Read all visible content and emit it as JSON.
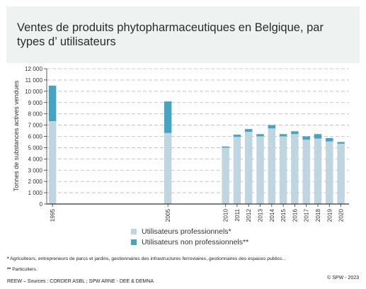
{
  "title": "Ventes de produits phytopharmaceutiques en Belgique, par types d’ utilisateurs",
  "legend": {
    "professional": "Utilisateurs professionnels*",
    "non_professional": "Utilisateurs non professionnels**"
  },
  "notes": {
    "note1_mark": "*",
    "note1_text": "Agriculteurs, entrepreneurs de parcs et jardins, gestionnaires des infrastructures ferroviaires, gestionnaires des espaces publics...",
    "note2_mark": "**",
    "note2_text": "Particuliers."
  },
  "footer": {
    "source": "REEW – Sources : CORDER ASBL ; SPW ARNE - DEE & DEMNA",
    "copyright": "© SPW - 2023"
  },
  "colors": {
    "professional": "#bfd6e0",
    "non_professional": "#46a3c4",
    "grid": "#bbbbbb",
    "axis": "#333333"
  },
  "chart_data": {
    "type": "bar",
    "stacked": true,
    "ylabel": "Tonnes de substances actives vendues",
    "ylim": [
      0,
      12000
    ],
    "yticks": [
      0,
      1000,
      2000,
      3000,
      4000,
      5000,
      6000,
      7000,
      8000,
      9000,
      10000,
      11000,
      12000
    ],
    "ytick_labels": [
      "0",
      "1 000",
      "2 000",
      "3 000",
      "4 000",
      "5 000",
      "6 000",
      "7 000",
      "8 000",
      "9 000",
      "10 000",
      "11 000",
      "12 000"
    ],
    "grid": true,
    "legend_position": "bottom",
    "categories": [
      "1995",
      "2005",
      "2010",
      "2011",
      "2012",
      "2013",
      "2014",
      "2015",
      "2016",
      "2017",
      "2018",
      "2019",
      "2020"
    ],
    "series": [
      {
        "name": "Utilisateurs professionnels*",
        "values": [
          7350,
          6300,
          5000,
          5950,
          6400,
          6000,
          6700,
          6000,
          6200,
          5700,
          5800,
          5550,
          5350
        ]
      },
      {
        "name": "Utilisateurs non professionnels**",
        "values": [
          3150,
          2800,
          100,
          200,
          250,
          200,
          300,
          200,
          250,
          300,
          400,
          300,
          150
        ]
      }
    ]
  }
}
